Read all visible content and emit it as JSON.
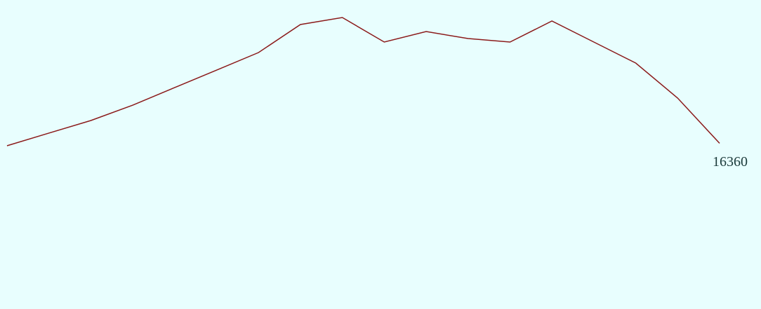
{
  "chart_data": {
    "type": "line",
    "categories": [
      null,
      null,
      null,
      null,
      null,
      null,
      null,
      null,
      null,
      null,
      null,
      null,
      null,
      null,
      null,
      null,
      null,
      null
    ],
    "series": [
      {
        "color": "#8b1a1a",
        "values": [
          16323,
          16512,
          16700,
          16930,
          17192,
          17453,
          17715,
          18134,
          18238,
          17872,
          18029,
          17924,
          17872,
          18186,
          17872,
          17558,
          17035,
          16360
        ]
      }
    ],
    "ylim": [
      14000,
      18500
    ]
  }
}
